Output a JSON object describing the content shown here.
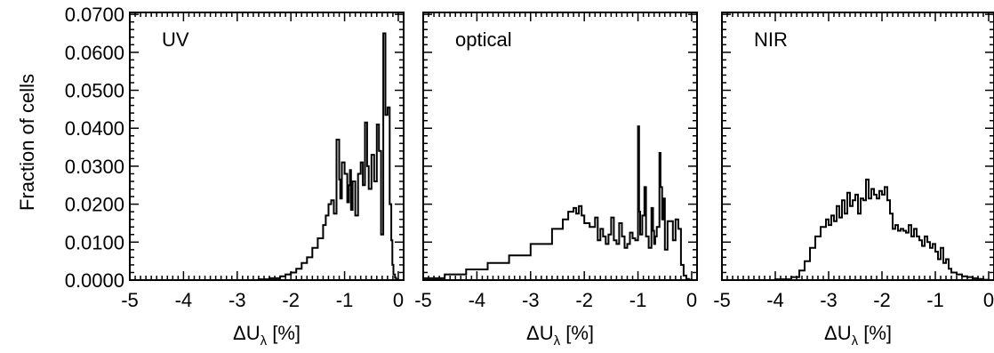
{
  "chart_data": {
    "type": "bar",
    "ylabel": "Fraction of cells",
    "xlabel_main": "ΔU",
    "xlabel_sub": "λ",
    "xlabel_unit": " [%]",
    "xlim": [
      -5,
      0.1
    ],
    "ylim": [
      0,
      0.0705
    ],
    "xticks": [
      "-5",
      "-4",
      "-3",
      "-2",
      "-1",
      "0"
    ],
    "yticks": [
      "0.0000",
      "0.0100",
      "0.0200",
      "0.0300",
      "0.0400",
      "0.0500",
      "0.0600",
      "0.0700"
    ],
    "panels": [
      {
        "name": "UV",
        "x": [
          -5.0,
          -2.6,
          -2.4,
          -2.2,
          -2.1,
          -2.0,
          -1.9,
          -1.8,
          -1.7,
          -1.6,
          -1.5,
          -1.4,
          -1.35,
          -1.3,
          -1.25,
          -1.2,
          -1.15,
          -1.1,
          -1.08,
          -1.05,
          -1.0,
          -0.95,
          -0.92,
          -0.9,
          -0.88,
          -0.85,
          -0.8,
          -0.75,
          -0.7,
          -0.66,
          -0.62,
          -0.58,
          -0.55,
          -0.5,
          -0.45,
          -0.4,
          -0.36,
          -0.32,
          -0.28,
          -0.24,
          -0.2,
          -0.16,
          -0.13,
          -0.11,
          -0.09,
          -0.06,
          -0.04,
          -0.02,
          0.0
        ],
        "y": [
          0.0,
          0.0002,
          0.0005,
          0.001,
          0.0015,
          0.002,
          0.003,
          0.0045,
          0.006,
          0.0085,
          0.011,
          0.0145,
          0.017,
          0.02,
          0.021,
          0.0175,
          0.037,
          0.0265,
          0.0215,
          0.031,
          0.028,
          0.0205,
          0.025,
          0.029,
          0.0185,
          0.026,
          0.017,
          0.028,
          0.031,
          0.025,
          0.0415,
          0.03,
          0.024,
          0.033,
          0.026,
          0.041,
          0.034,
          0.012,
          0.065,
          0.0435,
          0.0455,
          0.02,
          0.0105,
          0.004,
          0.0015,
          0.0006,
          0.0002,
          0.0001,
          0.0
        ]
      },
      {
        "name": "optical",
        "x": [
          -5.0,
          -4.6,
          -4.2,
          -3.8,
          -3.4,
          -3.0,
          -2.6,
          -2.4,
          -2.3,
          -2.2,
          -2.15,
          -2.1,
          -2.05,
          -2.0,
          -1.9,
          -1.8,
          -1.75,
          -1.7,
          -1.65,
          -1.6,
          -1.55,
          -1.5,
          -1.45,
          -1.4,
          -1.35,
          -1.3,
          -1.25,
          -1.2,
          -1.15,
          -1.1,
          -1.05,
          -1.0,
          -0.98,
          -0.96,
          -0.92,
          -0.88,
          -0.85,
          -0.8,
          -0.75,
          -0.72,
          -0.7,
          -0.68,
          -0.65,
          -0.6,
          -0.58,
          -0.55,
          -0.52,
          -0.5,
          -0.45,
          -0.4,
          -0.35,
          -0.3,
          -0.25,
          -0.2,
          -0.15,
          -0.1,
          -0.05,
          0.0
        ],
        "y": [
          0.0005,
          0.0015,
          0.0028,
          0.0045,
          0.0065,
          0.0095,
          0.0135,
          0.016,
          0.018,
          0.019,
          0.0175,
          0.0195,
          0.017,
          0.015,
          0.014,
          0.0165,
          0.0105,
          0.0135,
          0.0115,
          0.0095,
          0.012,
          0.0165,
          0.0105,
          0.0095,
          0.015,
          0.0115,
          0.0085,
          0.0095,
          0.0125,
          0.011,
          0.0105,
          0.0405,
          0.018,
          0.012,
          0.017,
          0.0245,
          0.0115,
          0.0085,
          0.019,
          0.013,
          0.0095,
          0.0115,
          0.014,
          0.0335,
          0.0245,
          0.016,
          0.0215,
          0.008,
          0.0155,
          0.0155,
          0.0105,
          0.016,
          0.0135,
          0.004,
          0.0012,
          0.0003,
          0.0001,
          0.0
        ]
      },
      {
        "name": "NIR",
        "x": [
          -5.0,
          -4.0,
          -3.7,
          -3.55,
          -3.45,
          -3.35,
          -3.25,
          -3.15,
          -3.05,
          -3.0,
          -2.95,
          -2.9,
          -2.85,
          -2.8,
          -2.75,
          -2.7,
          -2.65,
          -2.6,
          -2.55,
          -2.5,
          -2.45,
          -2.4,
          -2.35,
          -2.3,
          -2.25,
          -2.2,
          -2.15,
          -2.1,
          -2.05,
          -2.0,
          -1.95,
          -1.9,
          -1.85,
          -1.8,
          -1.75,
          -1.7,
          -1.65,
          -1.6,
          -1.55,
          -1.5,
          -1.45,
          -1.4,
          -1.35,
          -1.3,
          -1.25,
          -1.2,
          -1.15,
          -1.1,
          -1.05,
          -1.0,
          -0.95,
          -0.9,
          -0.85,
          -0.8,
          -0.75,
          -0.7,
          -0.6,
          -0.5,
          -0.4,
          -0.3,
          -0.2,
          -0.1,
          0.0
        ],
        "y": [
          0.0,
          0.0002,
          0.0008,
          0.0025,
          0.005,
          0.0085,
          0.0115,
          0.014,
          0.016,
          0.0145,
          0.017,
          0.0155,
          0.0195,
          0.0165,
          0.021,
          0.0175,
          0.023,
          0.0195,
          0.021,
          0.0225,
          0.0175,
          0.0215,
          0.021,
          0.0265,
          0.0215,
          0.024,
          0.0225,
          0.0215,
          0.0235,
          0.0225,
          0.0245,
          0.021,
          0.0175,
          0.0135,
          0.0145,
          0.013,
          0.0135,
          0.013,
          0.0125,
          0.0145,
          0.0115,
          0.0135,
          0.0115,
          0.0105,
          0.009,
          0.0115,
          0.01,
          0.0085,
          0.0095,
          0.0075,
          0.0055,
          0.0085,
          0.0045,
          0.0055,
          0.003,
          0.002,
          0.0015,
          0.001,
          0.0008,
          0.0005,
          0.0003,
          0.0001,
          0.0
        ]
      }
    ]
  }
}
